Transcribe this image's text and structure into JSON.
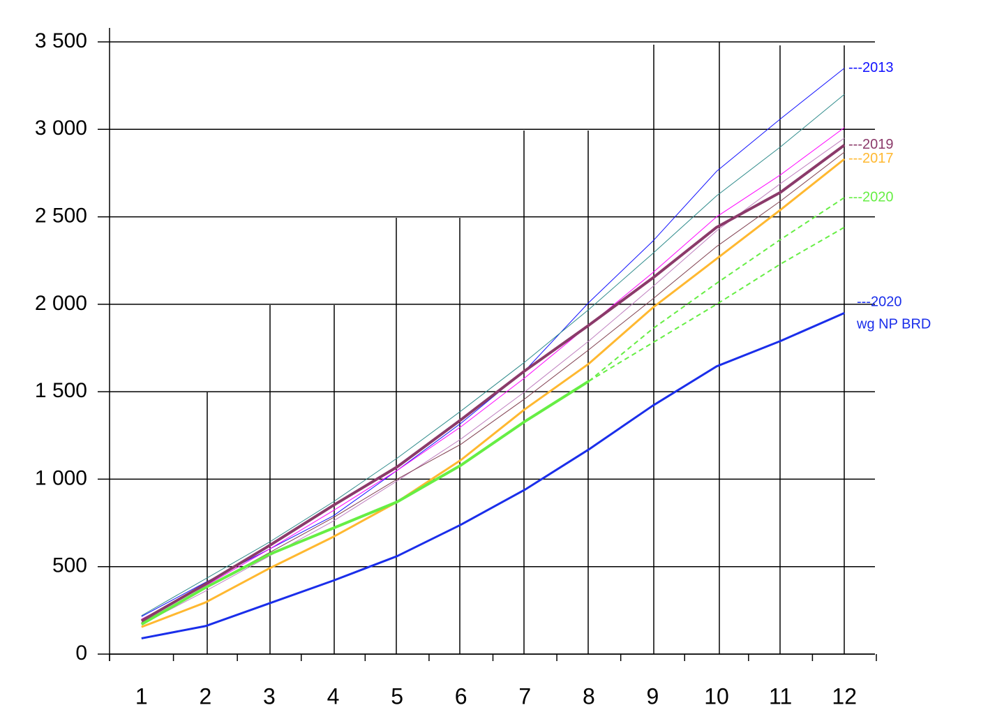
{
  "chart_data": {
    "type": "line",
    "x": [
      1,
      2,
      3,
      4,
      5,
      6,
      7,
      8,
      9,
      10,
      11,
      12
    ],
    "xlim": [
      0.5,
      12.5
    ],
    "ylim": [
      0,
      3500
    ],
    "yticks": [
      0,
      500,
      {
        "value": 1000,
        "label": "1 000"
      },
      {
        "value": 1500,
        "label": "1 500"
      },
      {
        "value": 2000,
        "label": "2 000"
      },
      {
        "value": 2500,
        "label": "2 500"
      },
      {
        "value": 3000,
        "label": "3 000"
      },
      {
        "value": 3500,
        "label": "3 500"
      }
    ],
    "grid": true,
    "series": [
      {
        "name": "---2013",
        "color": "#1010ff",
        "width": 1,
        "values": [
          215,
          410,
          600,
          790,
          1050,
          1320,
          1620,
          2010,
          2360,
          2760,
          3060,
          3350
        ]
      },
      {
        "color": "#2e8b8b",
        "width": 1,
        "values": [
          220,
          430,
          640,
          870,
          1120,
          1390,
          1670,
          1970,
          2290,
          2620,
          2900,
          3200
        ]
      },
      {
        "color": "#ff00ff",
        "width": 1,
        "values": [
          200,
          390,
          600,
          820,
          1050,
          1300,
          1580,
          1880,
          2180,
          2500,
          2740,
          3010
        ]
      },
      {
        "color": "#c080c0",
        "width": 1,
        "values": [
          170,
          360,
          560,
          760,
          990,
          1230,
          1500,
          1790,
          2100,
          2420,
          2690,
          2950
        ]
      },
      {
        "color": "#804050",
        "width": 1,
        "values": [
          180,
          380,
          580,
          780,
          1000,
          1200,
          1460,
          1740,
          2030,
          2330,
          2590,
          2870
        ]
      },
      {
        "name": "---2019",
        "color": "#8b3a6a",
        "width": 4,
        "values": [
          190,
          400,
          620,
          850,
          1070,
          1340,
          1620,
          1880,
          2150,
          2440,
          2640,
          2910
        ]
      },
      {
        "name": "---2017",
        "color": "#ffb830",
        "width": 3,
        "values": [
          155,
          295,
          490,
          670,
          870,
          1110,
          1400,
          1660,
          1980,
          2260,
          2540,
          2830
        ]
      },
      {
        "color": "#66ee44",
        "width": 4,
        "values": [
          170,
          380,
          570,
          720,
          870,
          1080,
          1330,
          1560,
          null,
          null,
          null,
          null
        ]
      },
      {
        "name": "---2020",
        "color": "#66ee44",
        "width": 2,
        "dashed": true,
        "values": [
          null,
          null,
          null,
          null,
          null,
          null,
          null,
          1560,
          1860,
          2120,
          2370,
          2610
        ]
      },
      {
        "color": "#66ee44",
        "width": 2,
        "dashed": true,
        "values": [
          null,
          null,
          null,
          null,
          null,
          null,
          null,
          1560,
          1780,
          2000,
          2230,
          2440
        ]
      },
      {
        "name": [
          "---2020",
          "wg NP BRD"
        ],
        "color": "#1a2eea",
        "width": 3,
        "values": [
          90,
          160,
          290,
          420,
          560,
          740,
          940,
          1170,
          1420,
          1645,
          1790,
          1950
        ]
      }
    ]
  }
}
